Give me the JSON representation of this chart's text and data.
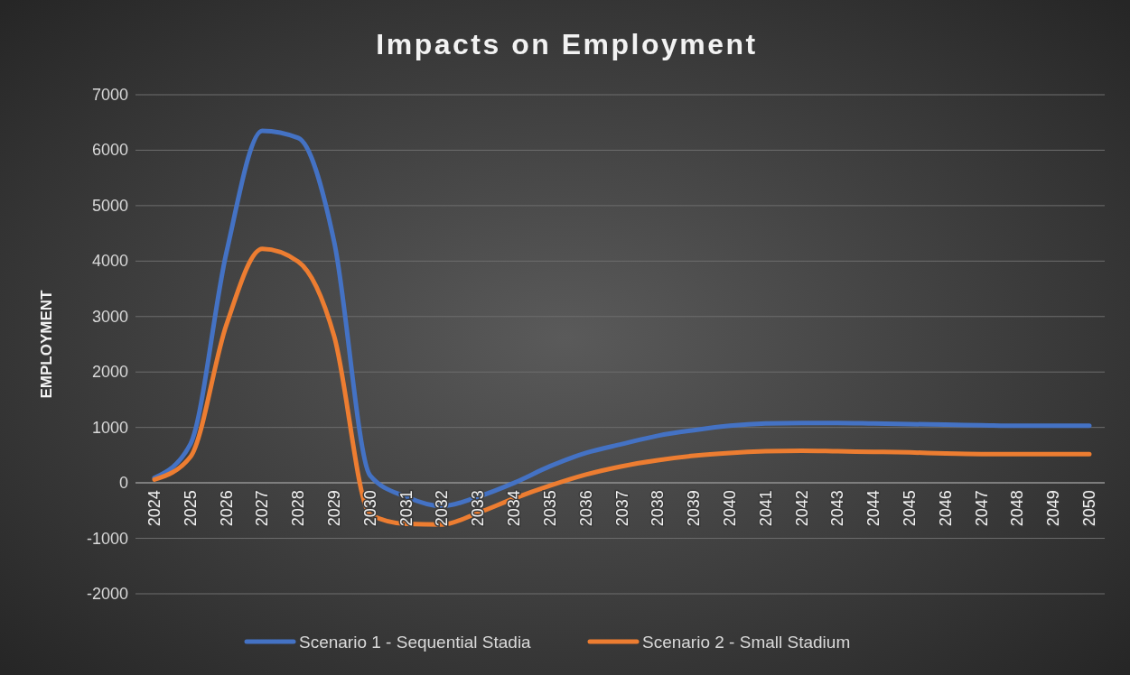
{
  "chart_data": {
    "type": "line",
    "title": "Impacts on Employment",
    "ylabel": "EMPLOYMENT",
    "categories": [
      "2024",
      "2025",
      "2026",
      "2027",
      "2028",
      "2029",
      "2030",
      "2031",
      "2032",
      "2033",
      "2034",
      "2035",
      "2036",
      "2037",
      "2038",
      "2039",
      "2040",
      "2041",
      "2042",
      "2043",
      "2044",
      "2045",
      "2046",
      "2047",
      "2048",
      "2049",
      "2050"
    ],
    "series": [
      {
        "name": "Scenario 1 - Sequential Stadia",
        "color": "#4472c4",
        "values": [
          90,
          700,
          4150,
          6350,
          6220,
          4340,
          130,
          -250,
          -420,
          -250,
          0,
          300,
          540,
          700,
          850,
          950,
          1030,
          1070,
          1080,
          1080,
          1070,
          1060,
          1050,
          1040,
          1030,
          1030,
          1030
        ]
      },
      {
        "name": "Scenario 2 - Small Stadium",
        "color": "#ed7d31",
        "values": [
          60,
          470,
          2850,
          4220,
          3990,
          2640,
          -570,
          -740,
          -750,
          -540,
          -280,
          -50,
          150,
          300,
          410,
          490,
          540,
          570,
          580,
          570,
          560,
          550,
          530,
          520,
          520,
          520,
          520
        ]
      }
    ],
    "ylim": [
      -2000,
      7000
    ],
    "yticks": [
      -2000,
      -1000,
      0,
      1000,
      2000,
      3000,
      4000,
      5000,
      6000,
      7000
    ],
    "grid": "y",
    "legend": "bottom",
    "marker": "none",
    "line_style": "solid"
  }
}
